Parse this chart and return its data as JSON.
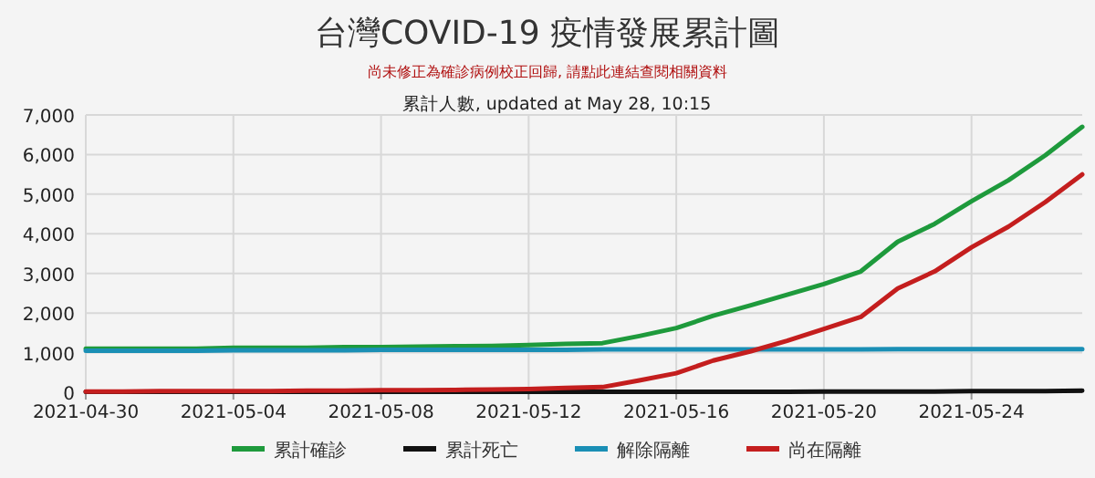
{
  "chart_data": {
    "type": "line",
    "title": "台灣COVID-19 疫情發展累計圖",
    "subtitle": "尚未修正為確診病例校正回歸, 請點此連結查閱相關資料",
    "annotations": [
      "累計人數, updated at May 28, 10:15"
    ],
    "x": [
      "2021-04-30",
      "2021-05-01",
      "2021-05-02",
      "2021-05-03",
      "2021-05-04",
      "2021-05-05",
      "2021-05-06",
      "2021-05-07",
      "2021-05-08",
      "2021-05-09",
      "2021-05-10",
      "2021-05-11",
      "2021-05-12",
      "2021-05-13",
      "2021-05-14",
      "2021-05-15",
      "2021-05-16",
      "2021-05-17",
      "2021-05-18",
      "2021-05-19",
      "2021-05-20",
      "2021-05-21",
      "2021-05-22",
      "2021-05-23",
      "2021-05-24",
      "2021-05-25",
      "2021-05-26",
      "2021-05-27"
    ],
    "series": [
      {
        "name": "累計確診",
        "color": "#1e9a3c",
        "values": [
          1100,
          1100,
          1100,
          1100,
          1120,
          1120,
          1120,
          1140,
          1140,
          1150,
          1160,
          1170,
          1190,
          1220,
          1240,
          1420,
          1620,
          1930,
          2190,
          2460,
          2730,
          3050,
          3800,
          4250,
          4820,
          5350,
          5980,
          6700
        ]
      },
      {
        "name": "累計死亡",
        "color": "#111111",
        "values": [
          10,
          10,
          10,
          10,
          10,
          10,
          10,
          10,
          10,
          10,
          10,
          10,
          10,
          10,
          10,
          10,
          10,
          10,
          10,
          10,
          20,
          20,
          20,
          20,
          30,
          30,
          30,
          40
        ]
      },
      {
        "name": "解除隔離",
        "color": "#1a8fb5",
        "values": [
          1050,
          1050,
          1050,
          1050,
          1060,
          1060,
          1060,
          1060,
          1070,
          1070,
          1070,
          1070,
          1070,
          1070,
          1080,
          1080,
          1080,
          1080,
          1080,
          1080,
          1080,
          1080,
          1090,
          1090,
          1090,
          1090,
          1090,
          1090
        ]
      },
      {
        "name": "尚在隔離",
        "color": "#c41e1e",
        "values": [
          20,
          20,
          30,
          30,
          30,
          30,
          40,
          40,
          50,
          50,
          60,
          70,
          80,
          110,
          130,
          300,
          480,
          800,
          1030,
          1300,
          1600,
          1900,
          2620,
          3050,
          3660,
          4180,
          4800,
          5500
        ]
      }
    ],
    "xlim": [
      "2021-04-30",
      "2021-05-27"
    ],
    "xticks": [
      "2021-04-30",
      "2021-05-04",
      "2021-05-08",
      "2021-05-12",
      "2021-05-16",
      "2021-05-20",
      "2021-05-24"
    ],
    "ylim": [
      0,
      7000
    ],
    "yticks": [
      {
        "value": 0,
        "label": "0"
      },
      {
        "value": 1000,
        "label": "1,000"
      },
      {
        "value": 2000,
        "label": "2,000"
      },
      {
        "value": 3000,
        "label": "3,000"
      },
      {
        "value": 4000,
        "label": "4,000"
      },
      {
        "value": 5000,
        "label": "5,000"
      },
      {
        "value": 6000,
        "label": "6,000"
      },
      {
        "value": 7000,
        "label": "7,000"
      }
    ],
    "grid": true,
    "legend": "bottom"
  }
}
